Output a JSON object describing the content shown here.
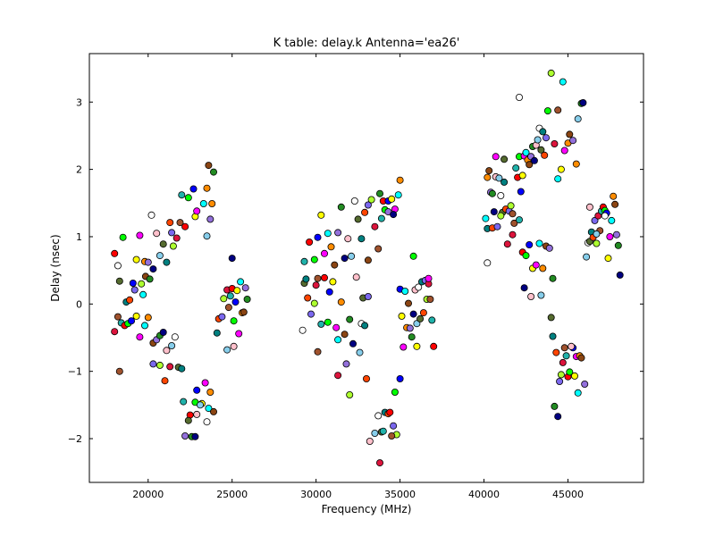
{
  "chart_data": {
    "type": "scatter",
    "title": "K table: delay.k      Antenna='ea26'",
    "xlabel": "Frequency (MHz)",
    "ylabel": "Delay (nsec)",
    "xlim": [
      16500,
      49500
    ],
    "ylim": [
      -2.65,
      3.72
    ],
    "xticks": [
      20000,
      25000,
      30000,
      35000,
      40000,
      45000
    ],
    "yticks": [
      -2,
      -1,
      0,
      1,
      2,
      3
    ],
    "grid": false,
    "legend": "none",
    "marker": "circle",
    "marker_edge_color": "#000000",
    "palette": [
      "#ff0000",
      "#00ff00",
      "#0000ff",
      "#ffff00",
      "#ff00ff",
      "#00ffff",
      "#ff8c00",
      "#8b4513",
      "#9370db",
      "#228b22",
      "#000080",
      "#ffc0cb",
      "#87ceeb",
      "#ffffff",
      "#556b2f",
      "#008080",
      "#ff4500",
      "#7b68ee",
      "#adff2f",
      "#dc143c",
      "#a0522d",
      "#20b2aa"
    ],
    "points": [
      [
        18000,
        0.75,
        0
      ],
      [
        18500,
        0.99,
        1
      ],
      [
        19100,
        0.31,
        2
      ],
      [
        19300,
        0.66,
        3
      ],
      [
        19500,
        1.02,
        4
      ],
      [
        19700,
        0.14,
        5
      ],
      [
        19800,
        0.63,
        6
      ],
      [
        19850,
        0.41,
        7
      ],
      [
        20000,
        0.62,
        8
      ],
      [
        20100,
        0.37,
        9
      ],
      [
        20200,
        1.32,
        13
      ],
      [
        20300,
        0.52,
        10
      ],
      [
        20500,
        1.05,
        11
      ],
      [
        20700,
        0.72,
        12
      ],
      [
        20900,
        0.89,
        14
      ],
      [
        21100,
        0.62,
        15
      ],
      [
        21300,
        1.21,
        16
      ],
      [
        21400,
        1.06,
        17
      ],
      [
        21500,
        0.86,
        18
      ],
      [
        21700,
        0.98,
        19
      ],
      [
        21900,
        1.21,
        20
      ],
      [
        22000,
        1.62,
        21
      ],
      [
        22200,
        1.15,
        0
      ],
      [
        22400,
        1.58,
        1
      ],
      [
        22700,
        1.71,
        2
      ],
      [
        22800,
        1.3,
        3
      ],
      [
        22900,
        1.38,
        4
      ],
      [
        23300,
        1.49,
        5
      ],
      [
        23500,
        1.72,
        6
      ],
      [
        23600,
        2.06,
        7
      ],
      [
        23700,
        1.26,
        8
      ],
      [
        23900,
        1.96,
        9
      ],
      [
        23800,
        1.49,
        6
      ],
      [
        23500,
        1.01,
        12
      ],
      [
        18200,
        0.57,
        13
      ],
      [
        18300,
        0.34,
        14
      ],
      [
        18700,
        0.03,
        15
      ],
      [
        18900,
        0.06,
        16
      ],
      [
        19200,
        0.21,
        17
      ],
      [
        19600,
        0.3,
        18
      ],
      [
        18000,
        -0.41,
        19
      ],
      [
        18200,
        -0.19,
        20
      ],
      [
        18400,
        -0.28,
        21
      ],
      [
        18600,
        -0.32,
        0
      ],
      [
        18800,
        -0.29,
        1
      ],
      [
        19000,
        -0.25,
        2
      ],
      [
        19300,
        -0.18,
        3
      ],
      [
        19500,
        -0.49,
        4
      ],
      [
        19800,
        -0.32,
        5
      ],
      [
        20000,
        -0.2,
        6
      ],
      [
        20300,
        -0.58,
        7
      ],
      [
        20500,
        -0.53,
        8
      ],
      [
        20700,
        -0.47,
        9
      ],
      [
        20900,
        -0.42,
        10
      ],
      [
        21100,
        -0.69,
        11
      ],
      [
        21400,
        -0.62,
        12
      ],
      [
        21600,
        -0.49,
        13
      ],
      [
        21800,
        -0.94,
        14
      ],
      [
        22000,
        -0.96,
        15
      ],
      [
        21000,
        -1.14,
        16
      ],
      [
        20300,
        -0.89,
        17
      ],
      [
        20700,
        -0.91,
        18
      ],
      [
        21300,
        -0.93,
        19
      ],
      [
        18300,
        -1.0,
        20
      ],
      [
        22100,
        -1.45,
        21
      ],
      [
        22500,
        -1.65,
        0
      ],
      [
        22800,
        -1.46,
        1
      ],
      [
        22900,
        -1.28,
        2
      ],
      [
        23200,
        -1.48,
        3
      ],
      [
        23400,
        -1.17,
        4
      ],
      [
        23600,
        -1.55,
        5
      ],
      [
        23700,
        -1.31,
        6
      ],
      [
        23900,
        -1.6,
        7
      ],
      [
        22200,
        -1.96,
        8
      ],
      [
        22600,
        -1.97,
        9
      ],
      [
        22800,
        -1.97,
        10
      ],
      [
        22900,
        -1.64,
        11
      ],
      [
        23100,
        -1.5,
        12
      ],
      [
        23500,
        -1.75,
        13
      ],
      [
        22400,
        -1.73,
        14
      ],
      [
        24100,
        -0.43,
        15
      ],
      [
        24200,
        -0.22,
        16
      ],
      [
        24400,
        -0.19,
        17
      ],
      [
        24500,
        0.08,
        18
      ],
      [
        24700,
        0.21,
        19
      ],
      [
        24800,
        -0.05,
        20
      ],
      [
        24900,
        0.12,
        21
      ],
      [
        25000,
        0.23,
        0
      ],
      [
        25100,
        -0.25,
        1
      ],
      [
        25200,
        0.03,
        2
      ],
      [
        25300,
        0.2,
        3
      ],
      [
        25400,
        -0.44,
        4
      ],
      [
        25500,
        0.33,
        5
      ],
      [
        25600,
        -0.13,
        6
      ],
      [
        25700,
        -0.12,
        7
      ],
      [
        25800,
        0.24,
        8
      ],
      [
        25900,
        0.07,
        9
      ],
      [
        25000,
        0.68,
        10
      ],
      [
        25100,
        -0.63,
        11
      ],
      [
        24700,
        -0.68,
        12
      ],
      [
        29200,
        -0.39,
        13
      ],
      [
        29300,
        0.31,
        14
      ],
      [
        29400,
        0.37,
        15
      ],
      [
        29500,
        0.09,
        16
      ],
      [
        29700,
        -0.15,
        17
      ],
      [
        29900,
        0.01,
        18
      ],
      [
        30000,
        0.28,
        19
      ],
      [
        30100,
        0.38,
        20
      ],
      [
        30300,
        -0.3,
        21
      ],
      [
        30500,
        0.39,
        0
      ],
      [
        30700,
        -0.27,
        1
      ],
      [
        30800,
        0.18,
        2
      ],
      [
        31000,
        0.33,
        3
      ],
      [
        31200,
        -0.35,
        4
      ],
      [
        31300,
        -0.53,
        5
      ],
      [
        31500,
        0.03,
        6
      ],
      [
        31700,
        -0.45,
        7
      ],
      [
        31800,
        -0.89,
        8
      ],
      [
        32000,
        -0.23,
        9
      ],
      [
        32200,
        -0.59,
        10
      ],
      [
        32400,
        0.4,
        11
      ],
      [
        32600,
        -0.72,
        12
      ],
      [
        32700,
        -0.29,
        13
      ],
      [
        32800,
        0.09,
        14
      ],
      [
        32900,
        -0.32,
        15
      ],
      [
        33000,
        -1.11,
        16
      ],
      [
        33100,
        0.11,
        17
      ],
      [
        32000,
        -1.35,
        18
      ],
      [
        31300,
        -1.06,
        19
      ],
      [
        30100,
        -0.71,
        20
      ],
      [
        29300,
        0.63,
        21
      ],
      [
        29600,
        0.92,
        0
      ],
      [
        29900,
        0.66,
        1
      ],
      [
        30100,
        0.99,
        2
      ],
      [
        30300,
        1.32,
        3
      ],
      [
        30500,
        0.75,
        4
      ],
      [
        30700,
        1.05,
        5
      ],
      [
        30900,
        0.85,
        6
      ],
      [
        31100,
        0.58,
        7
      ],
      [
        31300,
        1.06,
        8
      ],
      [
        31500,
        1.44,
        9
      ],
      [
        31700,
        0.68,
        10
      ],
      [
        31900,
        0.97,
        11
      ],
      [
        32100,
        0.71,
        12
      ],
      [
        32300,
        1.53,
        13
      ],
      [
        32500,
        1.26,
        14
      ],
      [
        32700,
        0.97,
        15
      ],
      [
        32900,
        1.36,
        16
      ],
      [
        33100,
        1.47,
        17
      ],
      [
        33300,
        1.55,
        18
      ],
      [
        33500,
        1.15,
        19
      ],
      [
        33700,
        0.82,
        20
      ],
      [
        33900,
        1.27,
        21
      ],
      [
        34000,
        1.53,
        0
      ],
      [
        34100,
        1.4,
        1
      ],
      [
        34300,
        1.53,
        2
      ],
      [
        34500,
        1.56,
        3
      ],
      [
        34700,
        1.41,
        4
      ],
      [
        34900,
        1.62,
        5
      ],
      [
        35000,
        1.84,
        6
      ],
      [
        33100,
        0.65,
        7
      ],
      [
        34300,
        1.37,
        8
      ],
      [
        33800,
        1.64,
        9
      ],
      [
        34600,
        1.33,
        10
      ],
      [
        33200,
        -2.04,
        11
      ],
      [
        33500,
        -1.92,
        12
      ],
      [
        33700,
        -1.66,
        13
      ],
      [
        33900,
        -1.9,
        14
      ],
      [
        34100,
        -1.61,
        15
      ],
      [
        34300,
        -1.63,
        16
      ],
      [
        34600,
        -1.81,
        17
      ],
      [
        34800,
        -1.94,
        18
      ],
      [
        33800,
        -2.36,
        19
      ],
      [
        34500,
        -1.96,
        20
      ],
      [
        34000,
        -1.89,
        21
      ],
      [
        34400,
        -1.61,
        0
      ],
      [
        34700,
        -1.31,
        1
      ],
      [
        35000,
        0.22,
        2
      ],
      [
        35100,
        -0.18,
        3
      ],
      [
        35200,
        -0.64,
        4
      ],
      [
        35300,
        0.19,
        5
      ],
      [
        35400,
        -0.35,
        6
      ],
      [
        35500,
        0.01,
        7
      ],
      [
        35600,
        -0.36,
        8
      ],
      [
        35700,
        -0.49,
        9
      ],
      [
        35800,
        -0.15,
        10
      ],
      [
        35900,
        0.21,
        11
      ],
      [
        36000,
        -0.29,
        12
      ],
      [
        36100,
        0.25,
        13
      ],
      [
        36200,
        -0.22,
        14
      ],
      [
        36300,
        0.33,
        15
      ],
      [
        36400,
        -0.13,
        16
      ],
      [
        36500,
        0.35,
        17
      ],
      [
        36600,
        0.07,
        18
      ],
      [
        36700,
        0.3,
        19
      ],
      [
        36800,
        0.07,
        20
      ],
      [
        36900,
        -0.24,
        21
      ],
      [
        37000,
        -0.63,
        0
      ],
      [
        35800,
        0.71,
        1
      ],
      [
        35000,
        -1.11,
        2
      ],
      [
        36000,
        -0.63,
        3
      ],
      [
        36700,
        0.38,
        4
      ],
      [
        40100,
        1.27,
        5
      ],
      [
        40200,
        1.88,
        6
      ],
      [
        40300,
        1.98,
        7
      ],
      [
        40400,
        1.66,
        8
      ],
      [
        40500,
        1.64,
        9
      ],
      [
        40600,
        1.37,
        10
      ],
      [
        40700,
        1.89,
        11
      ],
      [
        40900,
        1.87,
        12
      ],
      [
        41000,
        1.61,
        13
      ],
      [
        41100,
        1.36,
        14
      ],
      [
        41200,
        1.81,
        15
      ],
      [
        41300,
        1.41,
        16
      ],
      [
        41500,
        1.38,
        17
      ],
      [
        41600,
        1.46,
        18
      ],
      [
        41700,
        1.03,
        19
      ],
      [
        41800,
        1.2,
        20
      ],
      [
        41900,
        2.02,
        21
      ],
      [
        42000,
        1.88,
        0
      ],
      [
        42100,
        2.19,
        1
      ],
      [
        42200,
        1.67,
        2
      ],
      [
        42300,
        1.91,
        3
      ],
      [
        42400,
        2.2,
        4
      ],
      [
        42500,
        2.25,
        5
      ],
      [
        42600,
        2.14,
        6
      ],
      [
        42700,
        2.07,
        7
      ],
      [
        42800,
        2.19,
        8
      ],
      [
        42900,
        2.34,
        9
      ],
      [
        43000,
        2.13,
        10
      ],
      [
        43100,
        2.36,
        11
      ],
      [
        43200,
        2.44,
        12
      ],
      [
        43300,
        2.61,
        13
      ],
      [
        43400,
        2.29,
        14
      ],
      [
        43500,
        2.56,
        15
      ],
      [
        43600,
        2.21,
        16
      ],
      [
        43700,
        2.47,
        17
      ],
      [
        43800,
        2.87,
        1
      ],
      [
        44000,
        3.43,
        18
      ],
      [
        44200,
        2.38,
        19
      ],
      [
        44400,
        2.88,
        20
      ],
      [
        44600,
        2.0,
        3
      ],
      [
        44700,
        3.3,
        5
      ],
      [
        44800,
        2.28,
        4
      ],
      [
        45000,
        2.39,
        6
      ],
      [
        45100,
        2.52,
        7
      ],
      [
        45300,
        2.43,
        8
      ],
      [
        45500,
        2.08,
        6
      ],
      [
        45600,
        2.75,
        12
      ],
      [
        45800,
        2.98,
        9
      ],
      [
        45900,
        2.99,
        10
      ],
      [
        42100,
        3.07,
        13
      ],
      [
        41200,
        2.15,
        14
      ],
      [
        40700,
        2.19,
        4
      ],
      [
        44400,
        1.86,
        5
      ],
      [
        40200,
        1.12,
        15
      ],
      [
        40500,
        1.13,
        16
      ],
      [
        40800,
        1.15,
        17
      ],
      [
        41000,
        1.31,
        18
      ],
      [
        41400,
        0.89,
        19
      ],
      [
        41700,
        1.34,
        20
      ],
      [
        42100,
        1.25,
        21
      ],
      [
        42300,
        0.77,
        0
      ],
      [
        42500,
        0.72,
        1
      ],
      [
        42700,
        0.88,
        2
      ],
      [
        42900,
        0.53,
        3
      ],
      [
        43100,
        0.58,
        4
      ],
      [
        43300,
        0.9,
        5
      ],
      [
        43500,
        0.53,
        6
      ],
      [
        43700,
        0.86,
        7
      ],
      [
        43900,
        0.83,
        8
      ],
      [
        44100,
        0.38,
        9
      ],
      [
        42400,
        0.24,
        10
      ],
      [
        42800,
        0.11,
        11
      ],
      [
        43400,
        0.13,
        12
      ],
      [
        40200,
        0.61,
        13
      ],
      [
        44000,
        -0.2,
        14
      ],
      [
        44100,
        -0.48,
        15
      ],
      [
        44300,
        -0.72,
        16
      ],
      [
        44500,
        -1.15,
        17
      ],
      [
        44600,
        -1.05,
        18
      ],
      [
        44700,
        -0.87,
        19
      ],
      [
        44800,
        -0.65,
        20
      ],
      [
        44900,
        -0.77,
        21
      ],
      [
        45000,
        -1.08,
        0
      ],
      [
        45100,
        -1.01,
        1
      ],
      [
        45300,
        -0.65,
        2
      ],
      [
        45400,
        -1.07,
        3
      ],
      [
        45500,
        -0.78,
        4
      ],
      [
        45600,
        -1.32,
        5
      ],
      [
        45700,
        -0.77,
        6
      ],
      [
        45800,
        -0.8,
        7
      ],
      [
        46000,
        -1.19,
        8
      ],
      [
        44200,
        -1.52,
        9
      ],
      [
        44400,
        -1.67,
        10
      ],
      [
        45200,
        -0.63,
        11
      ],
      [
        46100,
        0.7,
        12
      ],
      [
        46200,
        0.91,
        13
      ],
      [
        46300,
        0.93,
        14
      ],
      [
        46400,
        1.07,
        15
      ],
      [
        46500,
        0.99,
        16
      ],
      [
        46600,
        1.24,
        17
      ],
      [
        46700,
        0.9,
        18
      ],
      [
        46800,
        1.31,
        19
      ],
      [
        46900,
        1.09,
        20
      ],
      [
        47000,
        1.38,
        21
      ],
      [
        47100,
        1.44,
        0
      ],
      [
        47200,
        1.39,
        1
      ],
      [
        47300,
        1.35,
        2
      ],
      [
        47400,
        0.68,
        3
      ],
      [
        47500,
        1.0,
        4
      ],
      [
        47600,
        1.24,
        5
      ],
      [
        47700,
        1.6,
        6
      ],
      [
        47800,
        1.48,
        7
      ],
      [
        47900,
        1.03,
        8
      ],
      [
        48000,
        0.87,
        9
      ],
      [
        48100,
        0.43,
        10
      ],
      [
        46300,
        1.44,
        11
      ],
      [
        46700,
        1.04,
        12
      ],
      [
        47200,
        1.31,
        13
      ]
    ]
  }
}
